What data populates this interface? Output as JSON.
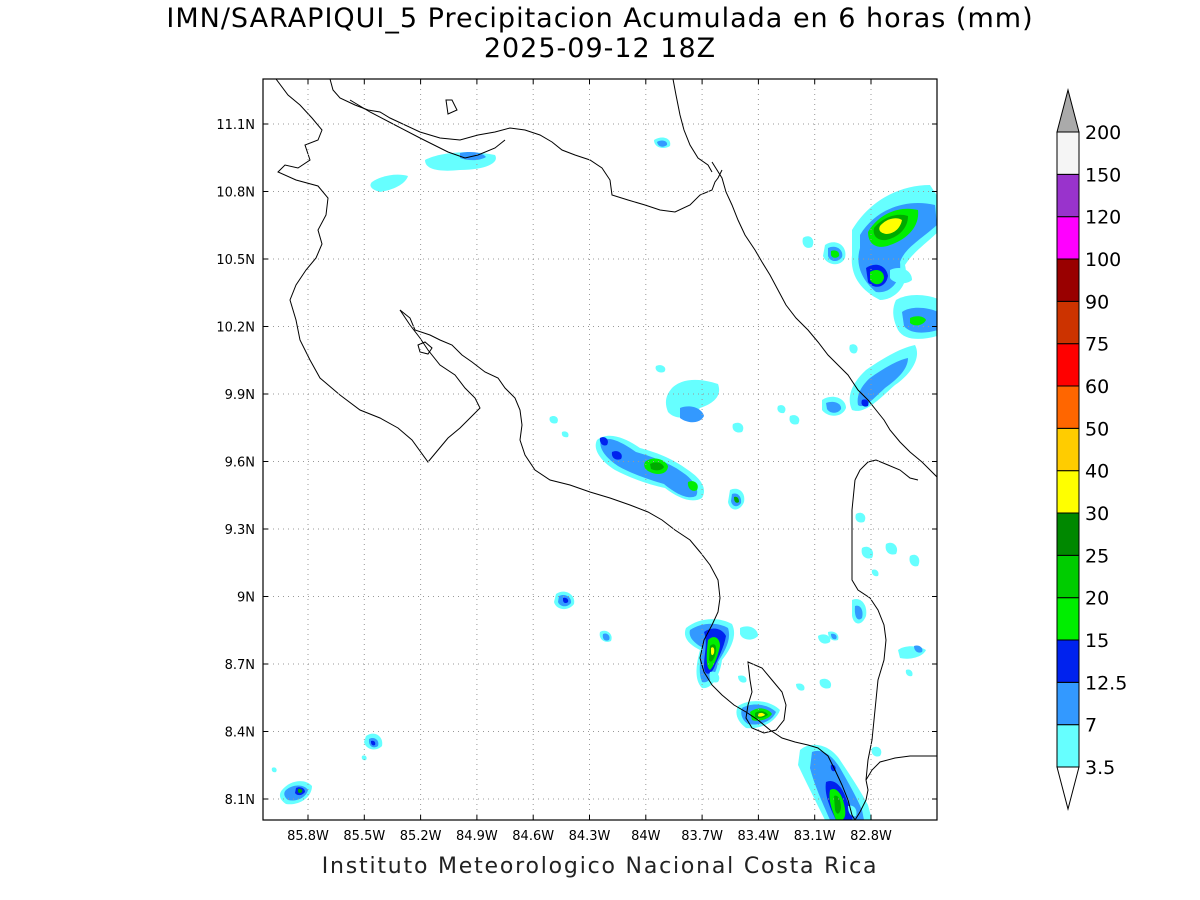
{
  "header": {
    "title_line1": "IMN/SARAPIQUI_5 Precipitacion Acumulada en 6 horas (mm)",
    "title_line2": "2025-09-12 18Z"
  },
  "footer": {
    "credit": "Instituto Meteorologico Nacional Costa Rica"
  },
  "map": {
    "lon_ticks": [
      "85.8W",
      "85.5W",
      "85.2W",
      "84.9W",
      "84.6W",
      "84.3W",
      "84W",
      "83.7W",
      "83.4W",
      "83.1W",
      "82.8W"
    ],
    "lat_ticks": [
      "11.1N",
      "10.8N",
      "10.5N",
      "10.2N",
      "9.9N",
      "9.6N",
      "9.3N",
      "9N",
      "8.7N",
      "8.4N",
      "8.1N"
    ],
    "gridlines": true
  },
  "colorbar": {
    "labels": [
      "3.5",
      "7",
      "12.5",
      "15",
      "20",
      "25",
      "30",
      "40",
      "50",
      "60",
      "75",
      "90",
      "100",
      "120",
      "150",
      "200"
    ],
    "colors": [
      "#ffffff",
      "#66ffff",
      "#3399ff",
      "#0022ee",
      "#00ee00",
      "#00cc00",
      "#008800",
      "#ffff00",
      "#ffcc00",
      "#ff6600",
      "#ff0000",
      "#cc3300",
      "#990000",
      "#ff00ff",
      "#9933cc",
      "#f5f5f5",
      "#aaaaaa"
    ]
  },
  "style": {
    "coast_color": "#000000",
    "grid_color": "#999999"
  }
}
